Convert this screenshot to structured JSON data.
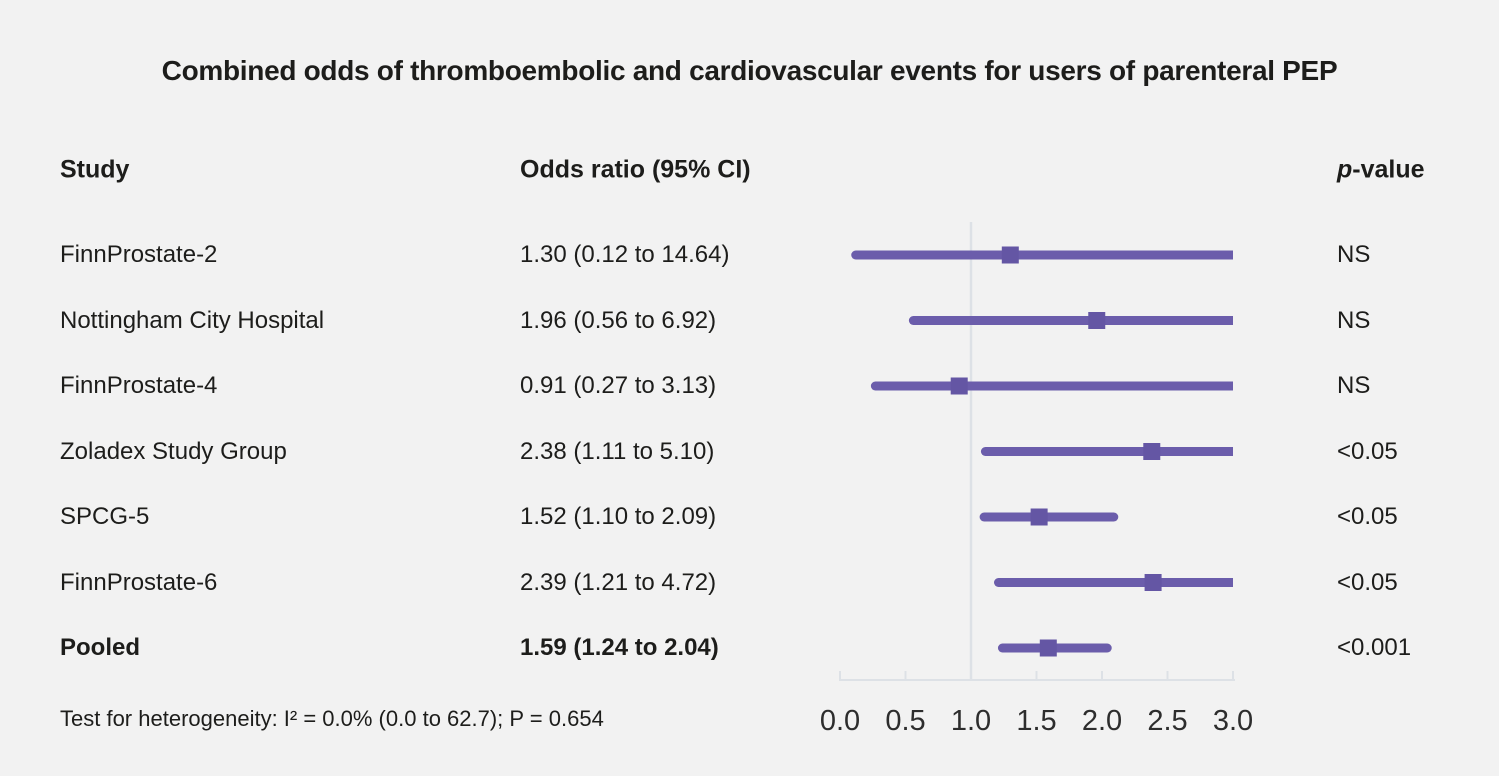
{
  "title": "Combined odds of thromboembolic and cardiovascular events for users of parenteral PEP",
  "columns": {
    "study": "Study",
    "odds_ratio": "Odds ratio (95% CI)",
    "p_prefix": "p",
    "p_suffix": "-value"
  },
  "footer": "Test for heterogeneity: I² = 0.0% (0.0 to 62.7); P = 0.654",
  "chart_data": {
    "type": "forest",
    "title": "Combined odds of thromboembolic and cardiovascular events for users of parenteral PEP",
    "rows": [
      {
        "study": "FinnProstate-2",
        "or_label": "1.30 (0.12 to 14.64)",
        "or": 1.3,
        "ci_low": 0.12,
        "ci_high": 14.64,
        "p": "NS",
        "bold": false
      },
      {
        "study": "Nottingham City Hospital",
        "or_label": "1.96 (0.56 to 6.92)",
        "or": 1.96,
        "ci_low": 0.56,
        "ci_high": 6.92,
        "p": "NS",
        "bold": false
      },
      {
        "study": "FinnProstate-4",
        "or_label": "0.91 (0.27 to 3.13)",
        "or": 0.91,
        "ci_low": 0.27,
        "ci_high": 3.13,
        "p": "NS",
        "bold": false
      },
      {
        "study": "Zoladex Study Group",
        "or_label": "2.38 (1.11 to 5.10)",
        "or": 2.38,
        "ci_low": 1.11,
        "ci_high": 5.1,
        "p": "<0.05",
        "bold": false
      },
      {
        "study": "SPCG-5",
        "or_label": "1.52 (1.10 to 2.09)",
        "or": 1.52,
        "ci_low": 1.1,
        "ci_high": 2.09,
        "p": "<0.05",
        "bold": false
      },
      {
        "study": "FinnProstate-6",
        "or_label": "2.39 (1.21 to 4.72)",
        "or": 2.39,
        "ci_low": 1.21,
        "ci_high": 4.72,
        "p": "<0.05",
        "bold": false
      },
      {
        "study": "Pooled",
        "or_label": "1.59 (1.24 to 2.04)",
        "or": 1.59,
        "ci_low": 1.24,
        "ci_high": 2.04,
        "p": "<0.001",
        "bold": true
      }
    ],
    "axis": {
      "min": 0.0,
      "max": 3.0,
      "ticks": [
        0.0,
        0.5,
        1.0,
        1.5,
        2.0,
        2.5,
        3.0
      ],
      "tick_labels": [
        "0.0",
        "0.5",
        "1.0",
        "1.5",
        "2.0",
        "2.5",
        "3.0"
      ],
      "reference_line": 1.0
    },
    "colors": {
      "ci_line": "#6b5dab",
      "marker": "#6456a4",
      "axis_line": "#dde1e6",
      "background": "#f2f2f2",
      "text": "#1d1d1b"
    }
  }
}
